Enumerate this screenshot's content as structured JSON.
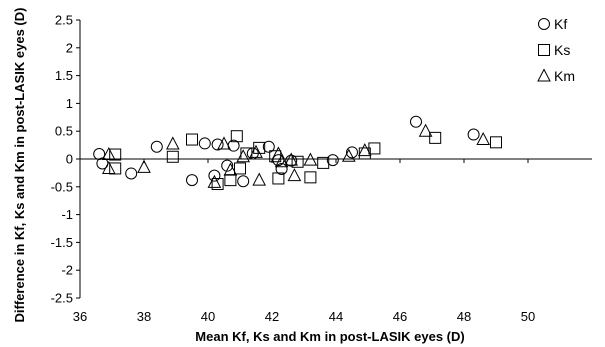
{
  "chart_data": {
    "type": "scatter",
    "xlabel": "Mean Kf, Ks and Km in post-LASIK eyes (D)",
    "ylabel": "Difference in Kf, Ks and Km in post-LASIK eyes (D)",
    "xlim": [
      36,
      52
    ],
    "ylim": [
      -2.5,
      2.5
    ],
    "xticks": [
      "36",
      "38",
      "40",
      "42",
      "44",
      "46",
      "48",
      "50"
    ],
    "yticks": [
      "2.5",
      "2",
      "1.5",
      "1",
      "0.5",
      "0",
      "-0.5",
      "-1",
      "-1.5",
      "-2",
      "-2.5"
    ],
    "grid": false,
    "legend_position": "top-right",
    "series": [
      {
        "name": "Kf",
        "marker": "circle",
        "points": [
          [
            36.6,
            0.09
          ],
          [
            36.7,
            -0.08
          ],
          [
            37.6,
            -0.26
          ],
          [
            38.4,
            0.22
          ],
          [
            39.5,
            -0.38
          ],
          [
            39.9,
            0.28
          ],
          [
            40.2,
            -0.3
          ],
          [
            40.3,
            0.26
          ],
          [
            40.6,
            -0.12
          ],
          [
            40.8,
            0.24
          ],
          [
            41.1,
            -0.4
          ],
          [
            41.4,
            0.1
          ],
          [
            41.9,
            0.22
          ],
          [
            42.2,
            -0.02
          ],
          [
            42.3,
            -0.18
          ],
          [
            42.6,
            -0.03
          ],
          [
            43.9,
            -0.02
          ],
          [
            44.5,
            0.12
          ],
          [
            46.5,
            0.67
          ],
          [
            48.3,
            0.44
          ]
        ]
      },
      {
        "name": "Ks",
        "marker": "square",
        "points": [
          [
            37.1,
            0.08
          ],
          [
            37.1,
            -0.17
          ],
          [
            38.9,
            0.04
          ],
          [
            39.5,
            0.35
          ],
          [
            40.3,
            -0.45
          ],
          [
            40.7,
            -0.38
          ],
          [
            40.9,
            0.41
          ],
          [
            41.0,
            -0.17
          ],
          [
            41.2,
            0.1
          ],
          [
            41.6,
            0.2
          ],
          [
            42.1,
            0.05
          ],
          [
            42.2,
            -0.35
          ],
          [
            42.8,
            -0.05
          ],
          [
            43.2,
            -0.33
          ],
          [
            43.6,
            -0.07
          ],
          [
            44.9,
            0.1
          ],
          [
            45.2,
            0.19
          ],
          [
            47.1,
            0.38
          ],
          [
            49.0,
            0.3
          ]
        ]
      },
      {
        "name": "Km",
        "marker": "triangle",
        "points": [
          [
            36.9,
            0.08
          ],
          [
            36.9,
            -0.17
          ],
          [
            38.0,
            -0.15
          ],
          [
            38.9,
            0.27
          ],
          [
            40.2,
            -0.42
          ],
          [
            40.5,
            0.27
          ],
          [
            40.7,
            -0.2
          ],
          [
            41.1,
            0.04
          ],
          [
            41.5,
            0.12
          ],
          [
            41.6,
            -0.38
          ],
          [
            42.2,
            0.09
          ],
          [
            42.3,
            -0.05
          ],
          [
            42.6,
            -0.02
          ],
          [
            42.7,
            -0.3
          ],
          [
            43.2,
            -0.02
          ],
          [
            44.4,
            0.05
          ],
          [
            44.9,
            0.15
          ],
          [
            46.8,
            0.5
          ],
          [
            48.6,
            0.35
          ]
        ]
      }
    ]
  }
}
